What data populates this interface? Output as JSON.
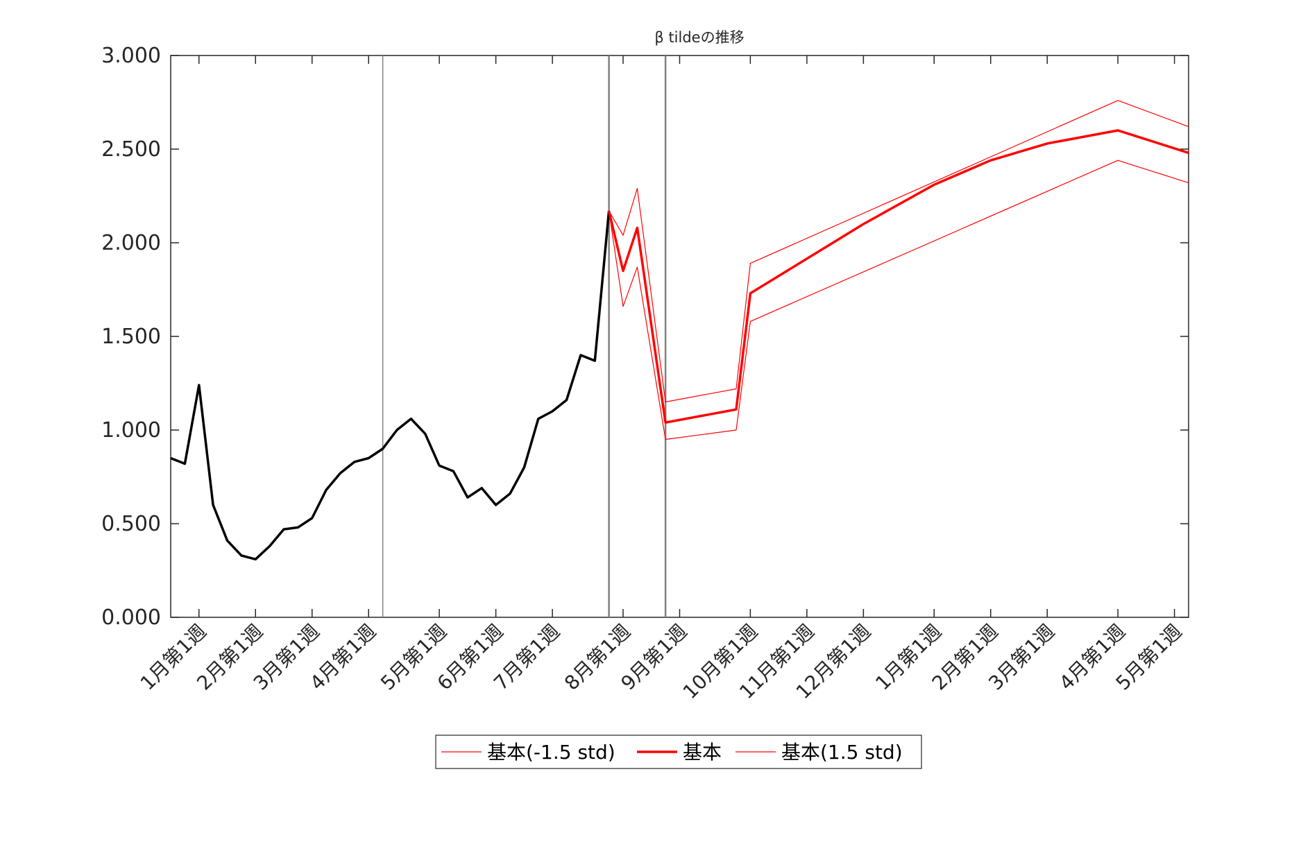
{
  "chart_data": {
    "type": "line",
    "title": "β tildeの推移",
    "xlabel": "",
    "ylabel": "",
    "ylim": [
      0,
      3
    ],
    "y_ticks": [
      "0.000",
      "0.500",
      "1.000",
      "1.500",
      "2.000",
      "2.500",
      "3.000"
    ],
    "x_index_range": [
      0,
      72
    ],
    "x_ticks": [
      {
        "i": 2,
        "label": "1月第1週"
      },
      {
        "i": 6,
        "label": "2月第1週"
      },
      {
        "i": 10,
        "label": "3月第1週"
      },
      {
        "i": 14,
        "label": "4月第1週"
      },
      {
        "i": 19,
        "label": "5月第1週"
      },
      {
        "i": 23,
        "label": "6月第1週"
      },
      {
        "i": 27,
        "label": "7月第1週"
      },
      {
        "i": 32,
        "label": "8月第1週"
      },
      {
        "i": 36,
        "label": "9月第1週"
      },
      {
        "i": 41,
        "label": "10月第1週"
      },
      {
        "i": 45,
        "label": "11月第1週"
      },
      {
        "i": 49,
        "label": "12月第1週"
      },
      {
        "i": 54,
        "label": "1月第1週"
      },
      {
        "i": 58,
        "label": "2月第1週"
      },
      {
        "i": 62,
        "label": "3月第1週"
      },
      {
        "i": 67,
        "label": "4月第1週"
      },
      {
        "i": 71,
        "label": "5月第1週"
      }
    ],
    "vertical_lines": [
      15,
      31,
      35
    ],
    "colors": {
      "history": "#000000",
      "forecast": "#ff0000",
      "vline": "#7f7f7f",
      "axes": "#262626"
    },
    "series": [
      {
        "name": "",
        "role": "history",
        "x": [
          0,
          1,
          2,
          3,
          4,
          5,
          6,
          7,
          8,
          9,
          10,
          11,
          12,
          13,
          14,
          15,
          16,
          17,
          18,
          19,
          20,
          21,
          22,
          23,
          24,
          25,
          26,
          27,
          28,
          29,
          30,
          31
        ],
        "y": [
          0.85,
          0.82,
          1.24,
          0.6,
          0.41,
          0.33,
          0.31,
          0.38,
          0.47,
          0.48,
          0.53,
          0.68,
          0.77,
          0.83,
          0.85,
          0.9,
          1.0,
          1.06,
          0.98,
          0.81,
          0.78,
          0.64,
          0.69,
          0.6,
          0.66,
          0.8,
          1.06,
          1.1,
          1.16,
          1.4,
          1.37,
          2.17
        ]
      },
      {
        "name": "基本(-1.5 std)",
        "role": "lower",
        "x": [
          31,
          32,
          33,
          35,
          40,
          41,
          67,
          72
        ],
        "y": [
          2.17,
          1.66,
          1.87,
          0.95,
          1.0,
          1.58,
          2.44,
          2.32
        ]
      },
      {
        "name": "基本",
        "role": "mid",
        "x": [
          31,
          32,
          33,
          35,
          40,
          41,
          49,
          54,
          58,
          62,
          67,
          72
        ],
        "y": [
          2.17,
          1.85,
          2.08,
          1.04,
          1.11,
          1.73,
          2.1,
          2.31,
          2.44,
          2.53,
          2.6,
          2.48
        ]
      },
      {
        "name": "基本(1.5 std)",
        "role": "upper",
        "x": [
          31,
          32,
          33,
          35,
          40,
          41,
          67,
          72
        ],
        "y": [
          2.17,
          2.04,
          2.29,
          1.15,
          1.22,
          1.89,
          2.76,
          2.62
        ]
      }
    ],
    "legend": {
      "placement": "bottom",
      "entries": [
        "基本(-1.5 std)",
        "基本",
        "基本(1.5 std)"
      ]
    }
  }
}
